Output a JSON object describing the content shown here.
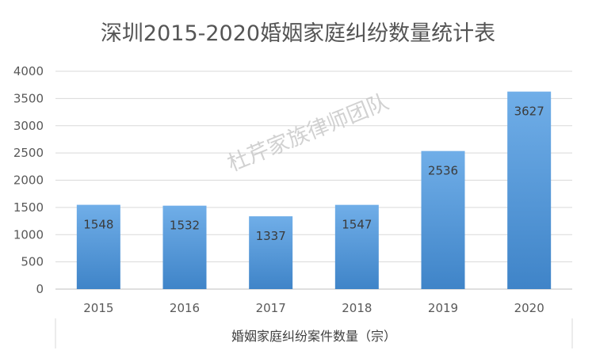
{
  "chart_data": {
    "type": "bar",
    "title": "深圳2015-2020婚姻家庭纠纷数量统计表",
    "categories": [
      "2015",
      "2016",
      "2017",
      "2018",
      "2019",
      "2020"
    ],
    "values": [
      1548,
      1532,
      1337,
      1547,
      2536,
      3627
    ],
    "xlabel": "婚姻家庭纠纷案件数量（宗）",
    "ylabel": "",
    "ylim": [
      0,
      4000
    ],
    "yticks": [
      0,
      500,
      1000,
      1500,
      2000,
      2500,
      3000,
      3500,
      4000
    ],
    "grid": true,
    "legend": "none",
    "bar_color": "#5b9bd5",
    "bar_color_dark": "#3f7fc0"
  },
  "watermark": "杜芹家族律师团队"
}
